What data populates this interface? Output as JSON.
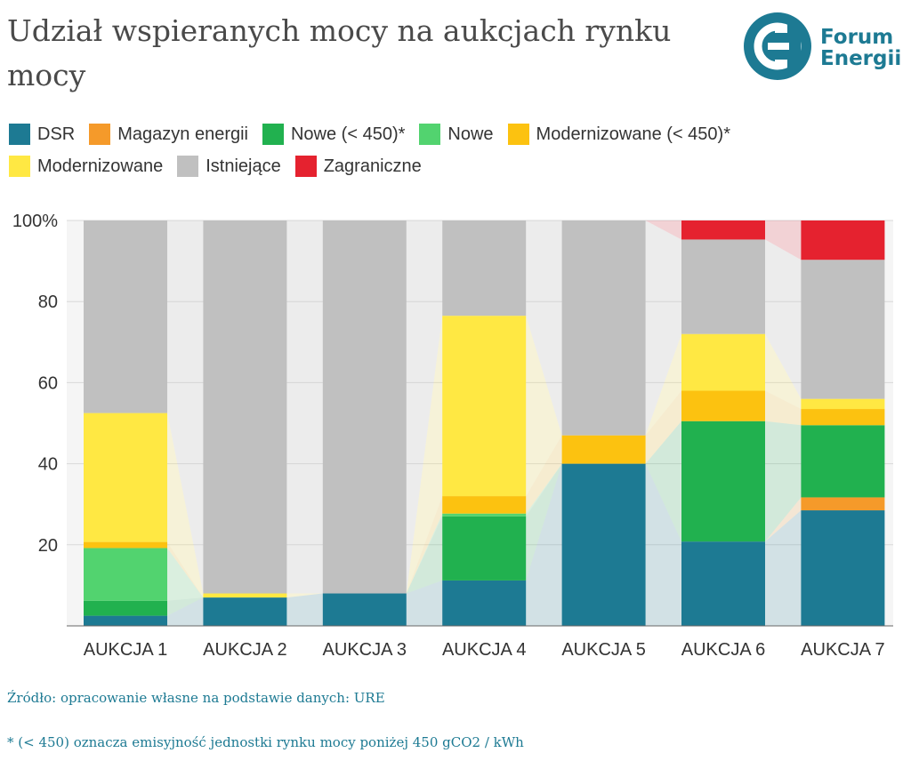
{
  "title": "Udział wspieranych mocy na aukcjach rynku mocy",
  "logo": {
    "line1": "Forum",
    "line2": "Energii"
  },
  "source": "Źródło: opracowanie własne na podstawie danych: URE",
  "note": "* (< 450) oznacza emisyjność jednostki rynku mocy poniżej 450 gCO2 / kWh",
  "chart_data": {
    "type": "bar",
    "stacked": true,
    "title": "Udział wspieranych mocy na aukcjach rynku mocy",
    "xlabel": "",
    "ylabel": "",
    "ylim": [
      0,
      100
    ],
    "y_ticks": [
      "20",
      "40",
      "60",
      "80",
      "100%"
    ],
    "y_tick_values": [
      20,
      40,
      60,
      80,
      100
    ],
    "grid": true,
    "legend_position": "top",
    "categories": [
      "AUKCJA 1",
      "AUKCJA 2",
      "AUKCJA 3",
      "AUKCJA 4",
      "AUKCJA 5",
      "AUKCJA 6",
      "AUKCJA 7"
    ],
    "series": [
      {
        "name": "DSR",
        "color": "#1d7a93",
        "values": [
          2.5,
          7,
          8,
          11.2,
          40,
          20.8,
          28.5
        ]
      },
      {
        "name": "Magazyn energii",
        "color": "#f59a2a",
        "values": [
          0,
          0,
          0,
          0,
          0,
          0,
          3.2
        ]
      },
      {
        "name": "Nowe (< 450)*",
        "color": "#21b14f",
        "values": [
          3.7,
          0,
          0,
          15.8,
          0,
          29.7,
          17.8
        ]
      },
      {
        "name": "Nowe",
        "color": "#52d36f",
        "values": [
          13,
          0,
          0,
          0.7,
          0,
          0,
          0
        ]
      },
      {
        "name": "Modernizowane (< 450)*",
        "color": "#fcc210",
        "values": [
          1.5,
          0,
          0,
          4.3,
          7,
          7.5,
          4
        ]
      },
      {
        "name": "Modernizowane",
        "color": "#ffe843",
        "values": [
          31.8,
          1,
          0,
          44.5,
          0,
          14,
          2.5
        ]
      },
      {
        "name": "Istniejące",
        "color": "#c0c0c0",
        "values": [
          47.5,
          92,
          92,
          23.5,
          53,
          23.3,
          34.3
        ]
      },
      {
        "name": "Zagraniczne",
        "color": "#e5222f",
        "values": [
          0,
          0,
          0,
          0,
          0,
          4.7,
          9.7
        ]
      }
    ]
  }
}
